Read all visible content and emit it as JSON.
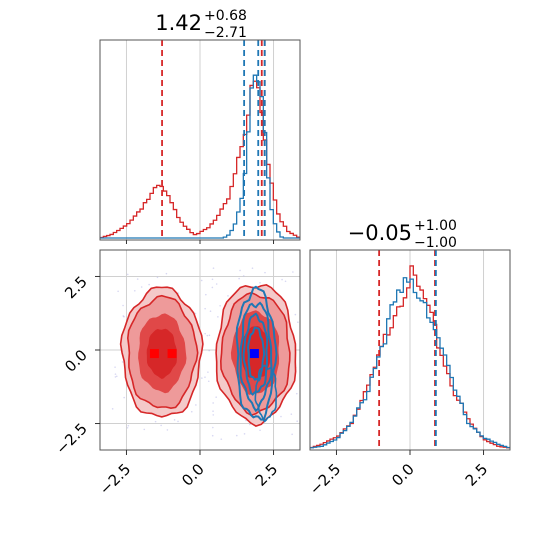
{
  "chart_data": [
    {
      "panel": "marginal-param-1",
      "type": "line",
      "title_main": "1.42",
      "title_sup": "+0.68",
      "title_sub": "−2.71",
      "xlim": [
        -3.4,
        3.4
      ],
      "grid": true,
      "series": [
        {
          "color": "#d62728",
          "x": [
            -3.4,
            -3.0,
            -2.6,
            -2.2,
            -1.9,
            -1.6,
            -1.4,
            -1.2,
            -1.0,
            -0.8,
            -0.5,
            -0.2,
            0.0,
            0.3,
            0.6,
            0.9,
            1.1,
            1.3,
            1.5,
            1.7,
            1.8,
            1.9,
            2.0,
            2.1,
            2.2,
            2.3,
            2.5,
            2.7,
            3.0,
            3.4
          ],
          "density": [
            0.0,
            0.02,
            0.06,
            0.13,
            0.2,
            0.26,
            0.3,
            0.27,
            0.21,
            0.14,
            0.07,
            0.02,
            0.03,
            0.06,
            0.12,
            0.2,
            0.32,
            0.47,
            0.62,
            0.78,
            0.88,
            0.9,
            0.83,
            0.72,
            0.58,
            0.44,
            0.26,
            0.12,
            0.04,
            0.0
          ]
        },
        {
          "color": "#1f77b4",
          "x": [
            0.8,
            1.0,
            1.2,
            1.4,
            1.5,
            1.6,
            1.7,
            1.8,
            1.9,
            2.0,
            2.1,
            2.2,
            2.3,
            2.4,
            2.6,
            2.8
          ],
          "density": [
            0.0,
            0.02,
            0.08,
            0.2,
            0.32,
            0.5,
            0.72,
            0.9,
            1.0,
            0.98,
            0.86,
            0.64,
            0.4,
            0.2,
            0.05,
            0.0
          ]
        }
      ],
      "quantile_lines": [
        {
          "color": "#d62728",
          "x": -1.29
        },
        {
          "color": "#d62728",
          "x": 2.1
        },
        {
          "color": "#d62728",
          "x": 2.2
        },
        {
          "color": "#1f77b4",
          "x": 1.5
        },
        {
          "color": "#1f77b4",
          "x": 1.98
        },
        {
          "color": "#1f77b4",
          "x": 2.2
        }
      ]
    },
    {
      "panel": "joint-contour",
      "type": "scatter",
      "xlim": [
        -3.4,
        3.4
      ],
      "ylim": [
        -3.4,
        3.4
      ],
      "x_ticks": [
        -2.5,
        0.0,
        2.5
      ],
      "x_tick_labels": [
        "−2.5",
        "0.0",
        "2.5"
      ],
      "y_ticks": [
        -2.5,
        0.0,
        2.5
      ],
      "y_tick_labels": [
        "−2.5",
        "0.0",
        "2.5"
      ],
      "grid": true,
      "red_modes": [
        {
          "cx": -1.3,
          "cy": -0.1,
          "rx": 1.35,
          "ry": 2.2
        },
        {
          "cx": 1.9,
          "cy": -0.1,
          "rx": 1.35,
          "ry": 2.35
        }
      ],
      "blue_mode": {
        "cx": 1.9,
        "cy": -0.15,
        "rx": 0.65,
        "ry": 2.2
      },
      "markers": [
        {
          "color": "#ff0000",
          "x": -1.55,
          "y": -0.12
        },
        {
          "color": "#ff0000",
          "x": -0.95,
          "y": -0.12
        },
        {
          "color": "#0000ff",
          "x": 1.85,
          "y": -0.12
        }
      ]
    },
    {
      "panel": "marginal-param-2",
      "type": "line",
      "title_main": "−0.05",
      "title_sup": "+1.00",
      "title_sub": "−1.00",
      "xlim": [
        -3.4,
        3.4
      ],
      "x_ticks": [
        -2.5,
        0.0,
        2.5
      ],
      "x_tick_labels": [
        "−2.5",
        "0.0",
        "2.5"
      ],
      "grid": true,
      "series": [
        {
          "color": "#d62728",
          "x": [
            -3.4,
            -3.0,
            -2.5,
            -2.0,
            -1.5,
            -1.0,
            -0.5,
            0.0,
            0.5,
            1.0,
            1.5,
            2.0,
            2.5,
            3.0,
            3.4
          ],
          "density": [
            0.0,
            0.02,
            0.06,
            0.14,
            0.3,
            0.52,
            0.78,
            0.95,
            0.82,
            0.56,
            0.32,
            0.15,
            0.05,
            0.01,
            0.0
          ]
        },
        {
          "color": "#1f77b4",
          "x": [
            -3.4,
            -3.0,
            -2.5,
            -2.0,
            -1.5,
            -1.0,
            -0.5,
            0.0,
            0.5,
            1.0,
            1.5,
            2.0,
            2.5,
            3.0,
            3.4
          ],
          "density": [
            0.0,
            0.01,
            0.05,
            0.13,
            0.29,
            0.55,
            0.8,
            0.92,
            0.84,
            0.58,
            0.33,
            0.14,
            0.06,
            0.02,
            0.0
          ]
        }
      ],
      "quantile_lines": [
        {
          "color": "#d62728",
          "x": -1.05
        },
        {
          "color": "#d62728",
          "x": 0.85
        },
        {
          "color": "#1f77b4",
          "x": 0.88
        }
      ]
    }
  ]
}
